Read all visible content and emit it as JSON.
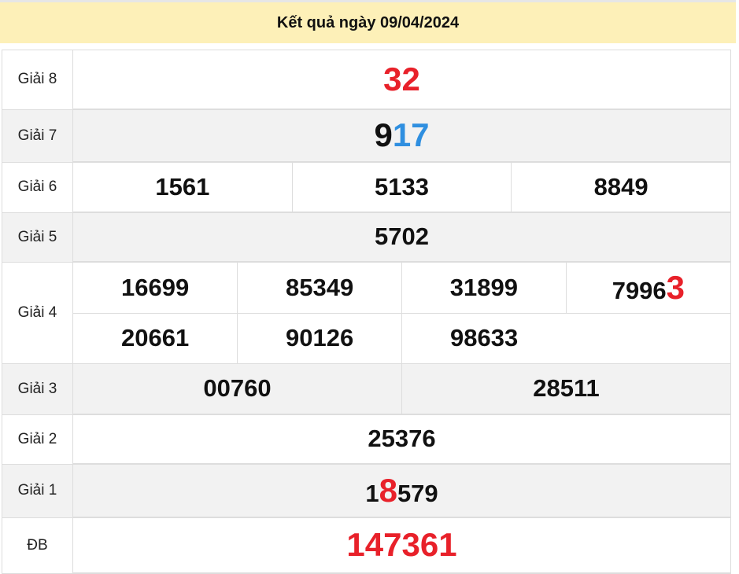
{
  "title": "Kết quả ngày 09/04/2024",
  "colors": {
    "red": "#e8212a",
    "blue": "#2f8fe0",
    "black": "#111111",
    "header_bg": "#fdf0b8"
  },
  "prizes": [
    {
      "label": "Giải 8",
      "rows": [
        [
          [
            {
              "t": "32",
              "c": "red"
            }
          ]
        ]
      ],
      "big": true
    },
    {
      "label": "Giải 7",
      "rows": [
        [
          [
            {
              "t": "9",
              "c": "black"
            },
            {
              "t": "17",
              "c": "blue"
            }
          ]
        ]
      ],
      "big": true
    },
    {
      "label": "Giải 6",
      "rows": [
        [
          [
            {
              "t": "1561"
            }
          ],
          [
            {
              "t": "5133"
            }
          ],
          [
            {
              "t": "8849"
            }
          ]
        ]
      ]
    },
    {
      "label": "Giải 5",
      "rows": [
        [
          [
            {
              "t": "5702"
            }
          ]
        ]
      ]
    },
    {
      "label": "Giải 4",
      "rows": [
        [
          [
            {
              "t": "16699"
            }
          ],
          [
            {
              "t": "85349"
            }
          ],
          [
            {
              "t": "31899"
            }
          ],
          [
            {
              "t": "7996"
            },
            {
              "t": "3",
              "c": "red",
              "big": true
            }
          ]
        ],
        [
          [
            {
              "t": "20661"
            }
          ],
          [
            {
              "t": "90126"
            }
          ],
          [
            {
              "t": "98633"
            }
          ]
        ]
      ]
    },
    {
      "label": "Giải 3",
      "rows": [
        [
          [
            {
              "t": "00760"
            }
          ],
          [
            {
              "t": "28511"
            }
          ]
        ]
      ]
    },
    {
      "label": "Giải 2",
      "rows": [
        [
          [
            {
              "t": "25376"
            }
          ]
        ]
      ]
    },
    {
      "label": "Giải 1",
      "rows": [
        [
          [
            {
              "t": "1"
            },
            {
              "t": "8",
              "c": "red",
              "big": true
            },
            {
              "t": "579"
            }
          ]
        ]
      ]
    },
    {
      "label": "ĐB",
      "rows": [
        [
          [
            {
              "t": "147361",
              "c": "red"
            }
          ]
        ]
      ],
      "big": true
    }
  ]
}
